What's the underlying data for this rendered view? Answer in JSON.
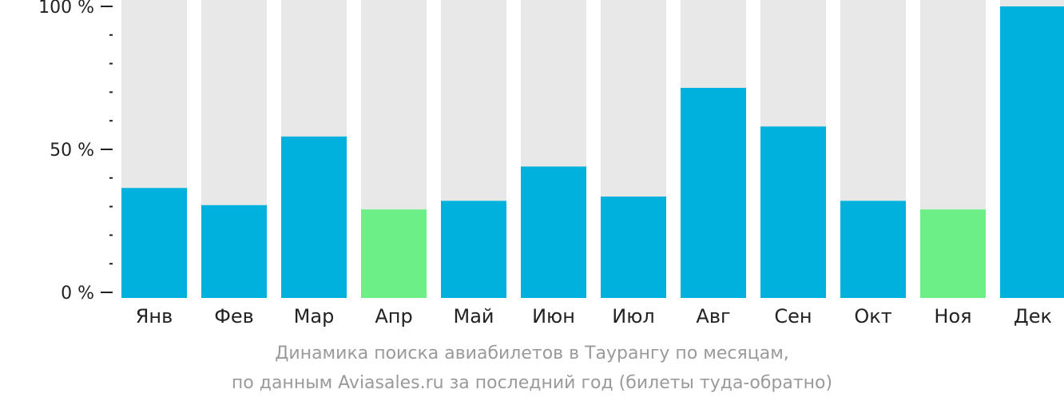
{
  "chart_data": {
    "type": "bar",
    "categories": [
      "Янв",
      "Фев",
      "Мар",
      "Апр",
      "Май",
      "Июн",
      "Июл",
      "Авг",
      "Сен",
      "Окт",
      "Ноя",
      "Дек"
    ],
    "values": [
      36.5,
      30.5,
      54.5,
      29,
      32,
      44,
      33.5,
      71.5,
      58,
      32,
      29,
      100
    ],
    "highlighted": [
      false,
      false,
      false,
      true,
      false,
      false,
      false,
      false,
      false,
      false,
      true,
      false
    ],
    "y_ticks": [
      "100 %",
      "50 %",
      "0 %"
    ],
    "ylim": [
      0,
      100
    ],
    "colors": {
      "bar": "#00b0dd",
      "highlight": "#6bef86",
      "track": "#e8e8e8",
      "axis": "#222222"
    }
  },
  "caption": {
    "line1": "Динамика поиска авиабилетов в Таурангу по месяцам,",
    "line2": "по данным Aviasales.ru за последний год (билеты туда-обратно)"
  }
}
